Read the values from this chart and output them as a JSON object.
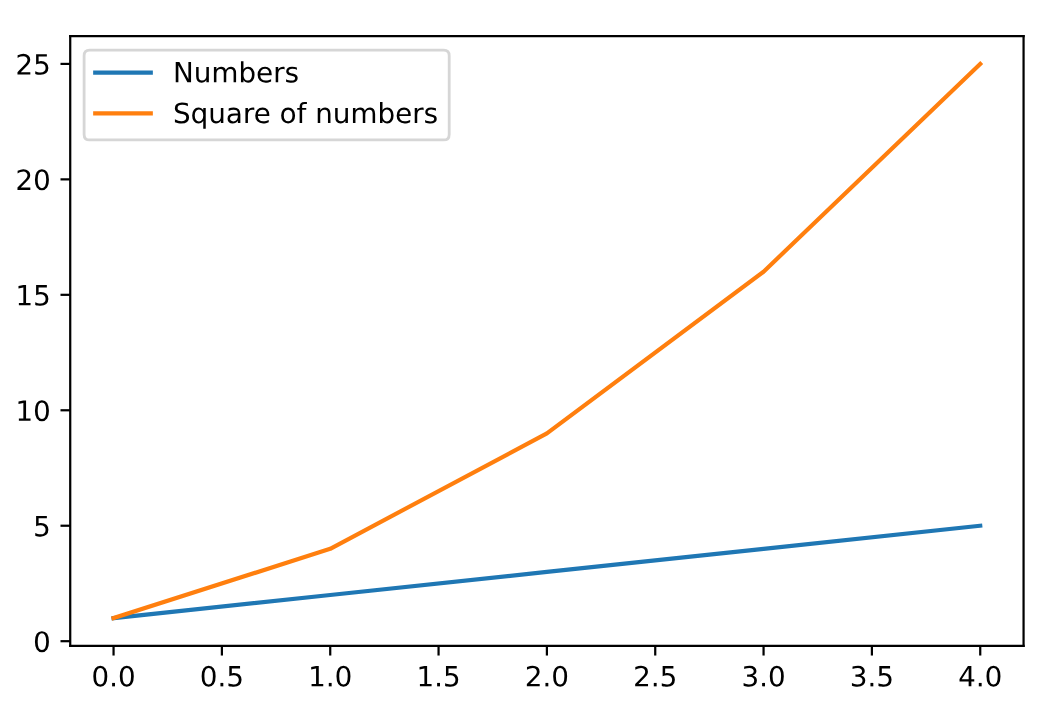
{
  "chart_data": {
    "type": "line",
    "x": [
      0,
      1,
      2,
      3,
      4
    ],
    "series": [
      {
        "name": "Numbers",
        "color": "#1f77b4",
        "values": [
          1,
          2,
          3,
          4,
          5
        ]
      },
      {
        "name": "Square of numbers",
        "color": "#ff7f0e",
        "values": [
          1,
          4,
          9,
          16,
          25
        ]
      }
    ],
    "xlim": [
      -0.2,
      4.2
    ],
    "xticks": [
      {
        "value": 0,
        "label": "0.0"
      },
      {
        "value": 0.5,
        "label": "0.5"
      },
      {
        "value": 1,
        "label": "1.0"
      },
      {
        "value": 1.5,
        "label": "1.5"
      },
      {
        "value": 2,
        "label": "2.0"
      },
      {
        "value": 2.5,
        "label": "2.5"
      },
      {
        "value": 3,
        "label": "3.0"
      },
      {
        "value": 3.5,
        "label": "3.5"
      },
      {
        "value": 4,
        "label": "4.0"
      }
    ],
    "ylim": [
      -0.2,
      26.2
    ],
    "yticks": [
      0,
      5,
      10,
      15,
      20,
      25
    ],
    "legend": "top left",
    "grid": false,
    "marker": "none",
    "line_style": "solid"
  }
}
